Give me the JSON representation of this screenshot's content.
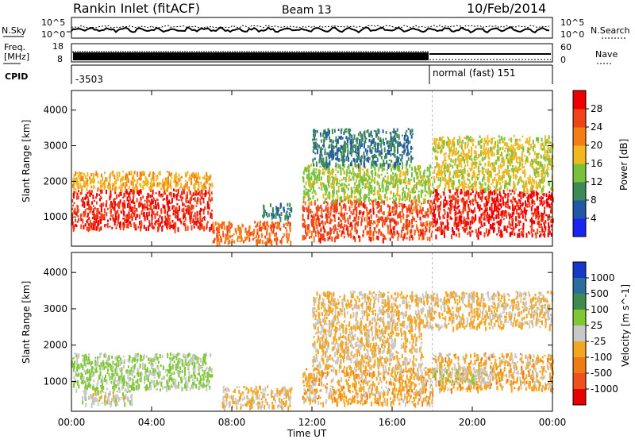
{
  "header": {
    "station": "Rankin Inlet (fitACF)",
    "beam": "Beam 13",
    "date": "10/Feb/2014"
  },
  "strip": {
    "nsky_label": "N.Sky",
    "nsearch_label": "N.Search",
    "noise_ticks": [
      "10^5",
      "10^0"
    ],
    "freq_label_1": "Freq.",
    "freq_label_2": "[MHz]",
    "freq_ticks": [
      "18",
      "8"
    ],
    "nave_label": "Nave",
    "nave_ticks": [
      "60",
      "0"
    ],
    "cpid_label": "CPID",
    "cpid_segments": [
      "-3503",
      "normal (fast) 151"
    ]
  },
  "axes": {
    "xlabel": "Time UT",
    "xticks": [
      "00:00",
      "04:00",
      "08:00",
      "12:00",
      "16:00",
      "20:00",
      "00:00"
    ],
    "ylabel": "Slant Range [km]",
    "yticks": [
      "1000",
      "2000",
      "3000",
      "4000"
    ]
  },
  "colorbars": {
    "power": {
      "label": "Power [dB]",
      "ticks": [
        "4",
        "8",
        "12",
        "16",
        "20",
        "24",
        "28"
      ],
      "colors": [
        "#1a24f0",
        "#2257a8",
        "#3c8a55",
        "#76c23a",
        "#f0b81e",
        "#f47d16",
        "#f0431a",
        "#ee0000"
      ]
    },
    "velocity": {
      "label": "Velocity [m s^-1]",
      "ticks": [
        "1000",
        "500",
        "100",
        "25",
        "-25",
        "-100",
        "-500",
        "-1000"
      ],
      "colors": [
        "#1438c8",
        "#2b6e9e",
        "#3d8b4f",
        "#7ec832",
        "#c8c8c8",
        "#f4a622",
        "#f07a14",
        "#f0501c",
        "#e80000"
      ]
    }
  },
  "chart_data": [
    {
      "type": "heatmap",
      "title": "Power",
      "xlabel": "Time UT",
      "ylabel": "Slant Range [km]",
      "xlim": [
        0,
        24
      ],
      "ylim": [
        180,
        4550
      ],
      "colorbar_range": [
        0,
        30
      ],
      "colorbar_label": "Power [dB]",
      "regions": [
        {
          "t": [
            0.0,
            7.0
          ],
          "r": [
            700,
            1800
          ],
          "value": 26
        },
        {
          "t": [
            0.0,
            7.0
          ],
          "r": [
            1800,
            2300
          ],
          "value": 18
        },
        {
          "t": [
            7.0,
            11.0
          ],
          "r": [
            300,
            900
          ],
          "value": 22
        },
        {
          "t": [
            9.5,
            11.0
          ],
          "r": [
            1000,
            1400
          ],
          "value": 8
        },
        {
          "t": [
            11.5,
            18.0
          ],
          "r": [
            400,
            1500
          ],
          "value": 24
        },
        {
          "t": [
            11.5,
            18.0
          ],
          "r": [
            1500,
            2500
          ],
          "value": 14
        },
        {
          "t": [
            12.0,
            17.0
          ],
          "r": [
            2500,
            3500
          ],
          "value": 8
        },
        {
          "t": [
            18.0,
            24.0
          ],
          "r": [
            500,
            1800
          ],
          "value": 27
        },
        {
          "t": [
            18.0,
            24.0
          ],
          "r": [
            1800,
            3300
          ],
          "value": 16
        }
      ]
    },
    {
      "type": "heatmap",
      "title": "Velocity",
      "xlabel": "Time UT",
      "ylabel": "Slant Range [km]",
      "xlim": [
        0,
        24
      ],
      "ylim": [
        180,
        4550
      ],
      "colorbar_range": [
        -1000,
        1000
      ],
      "colorbar_label": "Velocity [m s^-1]",
      "regions": [
        {
          "t": [
            0.0,
            7.0
          ],
          "r": [
            800,
            1800
          ],
          "value": 150
        },
        {
          "t": [
            0.5,
            3.0
          ],
          "r": [
            400,
            800
          ],
          "value": 0
        },
        {
          "t": [
            7.5,
            11.0
          ],
          "r": [
            300,
            900
          ],
          "value": -150
        },
        {
          "t": [
            11.5,
            18.0
          ],
          "r": [
            400,
            1400
          ],
          "value": -200
        },
        {
          "t": [
            12.0,
            17.5
          ],
          "r": [
            1400,
            2500
          ],
          "value": -150
        },
        {
          "t": [
            18.0,
            24.0
          ],
          "r": [
            800,
            1800
          ],
          "value": -200
        },
        {
          "t": [
            18.0,
            21.0
          ],
          "r": [
            1000,
            1400
          ],
          "value": 0
        },
        {
          "t": [
            12.0,
            24.0
          ],
          "r": [
            2500,
            3500
          ],
          "value": -150
        }
      ]
    }
  ]
}
